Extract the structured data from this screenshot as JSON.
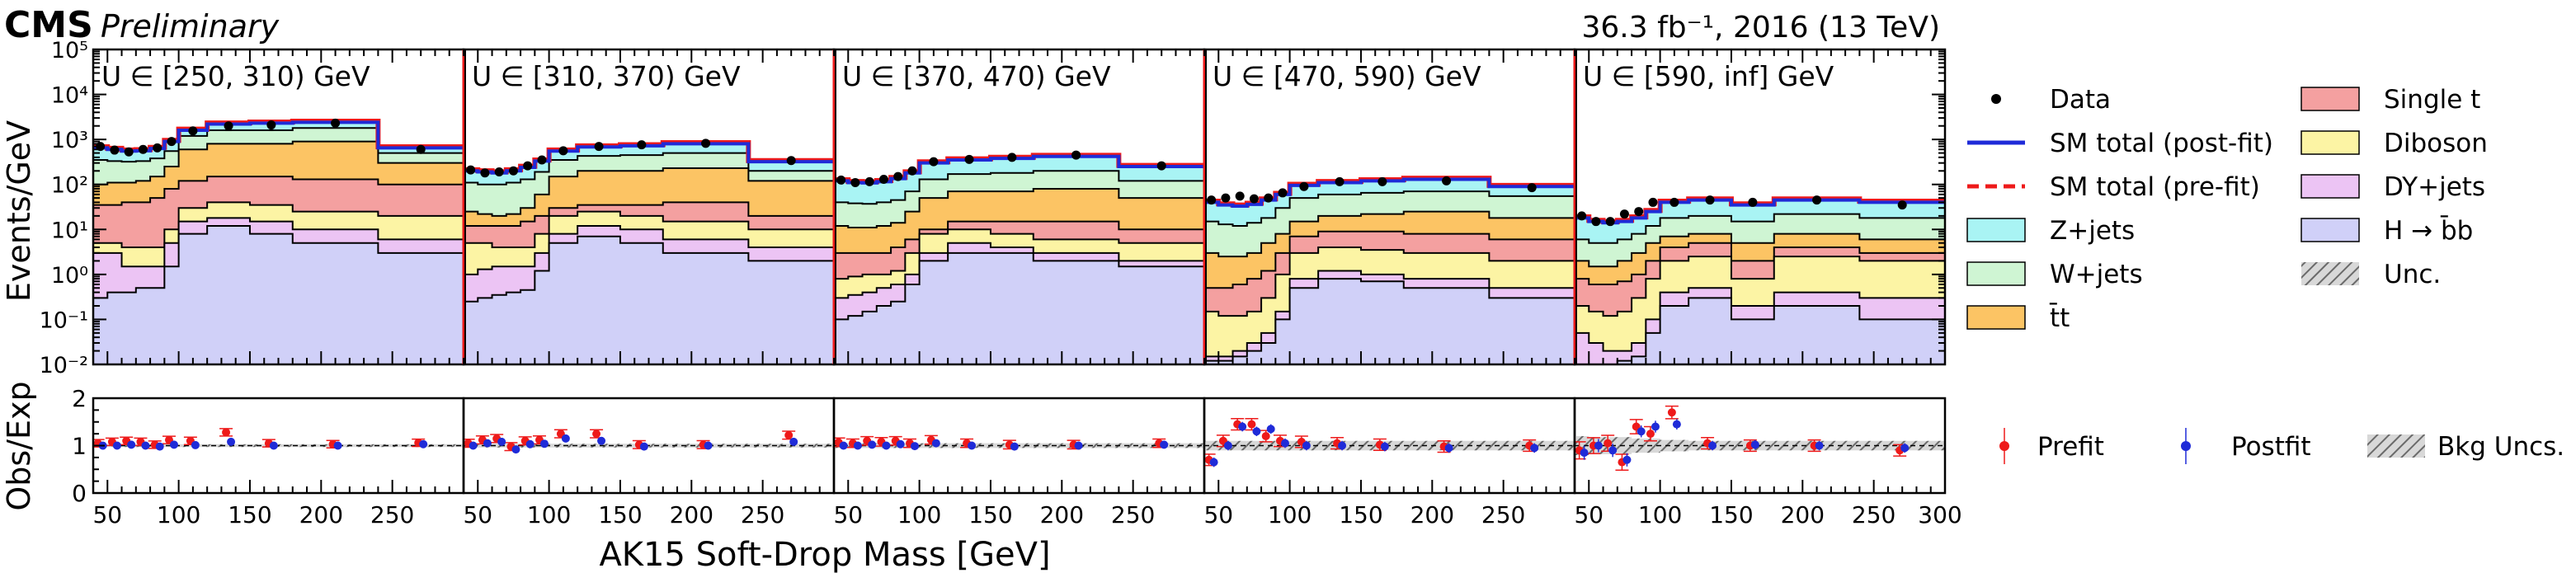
{
  "header": {
    "cms": "CMS",
    "preliminary": "Preliminary",
    "lumi": "36.3 fb⁻¹, 2016 (13 TeV)"
  },
  "colors": {
    "H_bb": "#d0d0f8",
    "DY_jets": "#ecc4f4",
    "Diboson": "#fcf4a4",
    "Single_t": "#f4a0a0",
    "ttbar": "#fcc464",
    "W_jets": "#cff5d3",
    "Z_jets": "#a9f4f4",
    "post_fit": "#1f2bd8",
    "pre_fit": "#ee1a1a",
    "unc": "#9a9a9a"
  },
  "chart_data": {
    "type": "bar",
    "subtype": "stacked-histogram-with-ratio",
    "title": "",
    "xlabel": "AK15 Soft-Drop Mass [GeV]",
    "ylabel": "Events/GeV",
    "ratio_ylabel": "Obs/Exp",
    "y_scale": "log",
    "ylim": [
      0.01,
      100000
    ],
    "ratio_ylim": [
      0,
      2
    ],
    "xlim": [
      40,
      300
    ],
    "x_edges": [
      40,
      50,
      60,
      70,
      80,
      90,
      100,
      120,
      150,
      180,
      240,
      300
    ],
    "y_ticks": [
      "10⁻²",
      "10⁻¹",
      "10⁰",
      "10¹",
      "10²",
      "10³",
      "10⁴",
      "10⁵"
    ],
    "x_ticks": [
      50,
      100,
      150,
      200,
      250
    ],
    "last_x_tick": "300",
    "ratio_ticks": [
      "0",
      "1",
      "2"
    ],
    "legend": {
      "main_col1": [
        "Data",
        "SM total (post-fit)",
        "SM total (pre-fit)",
        "Z+jets",
        "W+jets",
        "t̄t"
      ],
      "main_col2": [
        "Single t",
        "Diboson",
        "DY+jets",
        "H → b̄b",
        "Unc."
      ],
      "ratio": [
        "Prefit",
        "Postfit",
        "Bkg Uncs."
      ]
    },
    "processes": [
      "H_bb",
      "DY_jets",
      "Diboson",
      "Single_t",
      "ttbar",
      "W_jets",
      "Z_jets"
    ],
    "panels": [
      {
        "label": "U ∈ [250, 310) GeV",
        "stack_tops": {
          "H_bb": [
            0.3,
            0.4,
            0.4,
            0.5,
            0.5,
            1.5,
            8,
            12,
            8,
            5,
            3
          ],
          "DY_jets": [
            3,
            3,
            1.5,
            1.5,
            1.5,
            5,
            15,
            18,
            15,
            10,
            6
          ],
          "Diboson": [
            5,
            5,
            4,
            4,
            4,
            10,
            30,
            40,
            35,
            25,
            20
          ],
          "Single_t": [
            35,
            35,
            40,
            40,
            50,
            80,
            120,
            150,
            150,
            130,
            100
          ],
          "ttbar": [
            100,
            110,
            110,
            120,
            150,
            250,
            600,
            800,
            800,
            900,
            300
          ],
          "W_jets": [
            350,
            330,
            320,
            330,
            380,
            550,
            1200,
            1600,
            1600,
            1800,
            500
          ],
          "Z_jets": [
            650,
            600,
            550,
            560,
            630,
            900,
            1600,
            2200,
            2300,
            2400,
            650
          ]
        },
        "data": [
          700,
          580,
          530,
          600,
          650,
          900,
          1550,
          2000,
          2100,
          2300,
          600
        ],
        "ratio_pre": [
          1.05,
          1.08,
          1.1,
          1.08,
          1.02,
          1.12,
          1.1,
          1.28,
          1.05,
          1.03,
          1.06
        ],
        "ratio_post": [
          1.0,
          1.0,
          1.02,
          1.0,
          0.98,
          1.02,
          1.01,
          1.08,
          1.0,
          1.0,
          1.03
        ],
        "unc": [
          0.03,
          0.03,
          0.03,
          0.03,
          0.03,
          0.03,
          0.03,
          0.03,
          0.03,
          0.03,
          0.03
        ]
      },
      {
        "label": "U ∈ [310, 370) GeV",
        "stack_tops": {
          "H_bb": [
            0.25,
            0.3,
            0.35,
            0.4,
            0.45,
            1.2,
            5,
            7,
            5,
            3,
            2
          ],
          "DY_jets": [
            1,
            1.3,
            1.5,
            1.5,
            1.5,
            3,
            8,
            12,
            10,
            6,
            4
          ],
          "Diboson": [
            5,
            5,
            4,
            4,
            4,
            8,
            20,
            25,
            20,
            15,
            10
          ],
          "Single_t": [
            12,
            12,
            12,
            12,
            15,
            20,
            30,
            35,
            35,
            40,
            20
          ],
          "ttbar": [
            25,
            22,
            20,
            22,
            30,
            60,
            150,
            200,
            200,
            230,
            120
          ],
          "W_jets": [
            110,
            100,
            100,
            110,
            130,
            190,
            350,
            430,
            450,
            500,
            200
          ],
          "Z_jets": [
            200,
            190,
            180,
            200,
            240,
            330,
            550,
            680,
            720,
            800,
            320
          ]
        },
        "data": [
          210,
          180,
          190,
          200,
          260,
          350,
          560,
          700,
          760,
          820,
          340
        ],
        "ratio_pre": [
          1.05,
          1.12,
          1.15,
          0.98,
          1.1,
          1.12,
          1.25,
          1.25,
          1.02,
          1.02,
          1.22
        ],
        "ratio_post": [
          1.0,
          1.05,
          1.08,
          0.92,
          1.03,
          1.04,
          1.15,
          1.1,
          0.98,
          1.0,
          1.08
        ],
        "unc": [
          0.04,
          0.04,
          0.04,
          0.04,
          0.04,
          0.04,
          0.04,
          0.04,
          0.04,
          0.04,
          0.04
        ]
      },
      {
        "label": "U ∈ [370, 470) GeV",
        "stack_tops": {
          "H_bb": [
            0.1,
            0.12,
            0.15,
            0.2,
            0.25,
            0.6,
            2,
            3,
            3,
            2,
            1.5
          ],
          "DY_jets": [
            0.3,
            0.35,
            0.4,
            0.5,
            0.6,
            1.0,
            3,
            5,
            4,
            3,
            2
          ],
          "Diboson": [
            0.8,
            0.9,
            1.0,
            1.0,
            1.2,
            3,
            8,
            10,
            8,
            6,
            5
          ],
          "Single_t": [
            3,
            3,
            3,
            3,
            4,
            6,
            10,
            15,
            15,
            15,
            10
          ],
          "ttbar": [
            12,
            11,
            11,
            12,
            14,
            25,
            50,
            70,
            70,
            80,
            50
          ],
          "W_jets": [
            40,
            38,
            37,
            40,
            45,
            70,
            130,
            170,
            180,
            200,
            120
          ],
          "Z_jets": [
            120,
            110,
            108,
            115,
            135,
            180,
            300,
            350,
            380,
            420,
            250
          ]
        },
        "data": [
          125,
          110,
          115,
          130,
          150,
          200,
          320,
          360,
          400,
          450,
          260
        ],
        "ratio_pre": [
          1.07,
          1.05,
          1.1,
          1.08,
          1.1,
          1.05,
          1.12,
          1.05,
          1.02,
          1.02,
          1.05
        ],
        "ratio_post": [
          1.0,
          1.0,
          1.02,
          1.0,
          1.03,
          0.99,
          1.05,
          1.0,
          0.98,
          1.0,
          1.02
        ],
        "unc": [
          0.05,
          0.05,
          0.05,
          0.05,
          0.05,
          0.05,
          0.05,
          0.05,
          0.05,
          0.05,
          0.05
        ]
      },
      {
        "label": "U ∈ [470, 590) GeV",
        "stack_tops": {
          "H_bb": [
            0.012,
            0.012,
            0.015,
            0.02,
            0.03,
            0.1,
            0.5,
            0.8,
            0.7,
            0.5,
            0.3
          ],
          "DY_jets": [
            0.015,
            0.015,
            0.02,
            0.03,
            0.05,
            0.15,
            0.8,
            1.2,
            1.0,
            0.8,
            0.5
          ],
          "Diboson": [
            0.15,
            0.12,
            0.12,
            0.15,
            0.3,
            1.0,
            3,
            4,
            3.5,
            3,
            2
          ],
          "Single_t": [
            0.5,
            0.5,
            0.6,
            0.8,
            1.2,
            3,
            7,
            9,
            9,
            8,
            6
          ],
          "ttbar": [
            3,
            2.5,
            2.5,
            3,
            5,
            8,
            15,
            20,
            22,
            25,
            18
          ],
          "W_jets": [
            15,
            13,
            12,
            14,
            18,
            30,
            50,
            60,
            65,
            70,
            55
          ],
          "Z_jets": [
            40,
            35,
            33,
            36,
            45,
            60,
            95,
            110,
            120,
            130,
            90
          ]
        },
        "data": [
          45,
          50,
          55,
          48,
          50,
          65,
          90,
          115,
          115,
          120,
          85
        ],
        "ratio_pre": [
          0.7,
          1.1,
          1.45,
          1.45,
          1.2,
          1.1,
          1.08,
          1.05,
          1.02,
          0.98,
          1.0
        ],
        "ratio_post": [
          0.65,
          1.0,
          1.4,
          1.3,
          1.35,
          1.05,
          1.0,
          1.0,
          0.98,
          0.95,
          0.95
        ],
        "unc": [
          0.1,
          0.1,
          0.1,
          0.1,
          0.1,
          0.1,
          0.1,
          0.1,
          0.1,
          0.1,
          0.1
        ]
      },
      {
        "label": "U ∈ [590, inf] GeV",
        "stack_tops": {
          "H_bb": [
            0.01,
            0.01,
            0.01,
            0.012,
            0.015,
            0.05,
            0.2,
            0.3,
            0.1,
            0.2,
            0.1
          ],
          "DY_jets": [
            0.05,
            0.03,
            0.02,
            0.02,
            0.03,
            0.1,
            0.4,
            0.5,
            0.2,
            0.4,
            0.3
          ],
          "Diboson": [
            0.2,
            0.15,
            0.12,
            0.15,
            0.3,
            0.8,
            2,
            2.5,
            0.8,
            2.5,
            2
          ],
          "Single_t": [
            0.8,
            0.6,
            0.6,
            0.7,
            1.0,
            2,
            4,
            5,
            2,
            4,
            3
          ],
          "ttbar": [
            2,
            1.5,
            1.5,
            2,
            3,
            5,
            7,
            8,
            5,
            8,
            6
          ],
          "W_jets": [
            6,
            5,
            5,
            6,
            8,
            12,
            18,
            20,
            15,
            22,
            18
          ],
          "Z_jets": [
            18,
            15,
            14,
            15,
            18,
            25,
            40,
            45,
            35,
            45,
            40
          ]
        },
        "data": [
          20,
          15,
          15,
          22,
          25,
          40,
          40,
          45,
          40,
          45,
          35
        ],
        "ratio_pre": [
          0.9,
          1.0,
          1.05,
          0.65,
          1.4,
          1.25,
          1.7,
          1.05,
          1.0,
          1.0,
          0.9
        ],
        "ratio_post": [
          0.85,
          1.0,
          0.9,
          0.7,
          1.3,
          1.4,
          1.45,
          1.0,
          1.02,
          1.0,
          0.95
        ],
        "unc": [
          0.2,
          0.18,
          0.18,
          0.18,
          0.15,
          0.15,
          0.12,
          0.1,
          0.1,
          0.1,
          0.1
        ]
      }
    ]
  }
}
